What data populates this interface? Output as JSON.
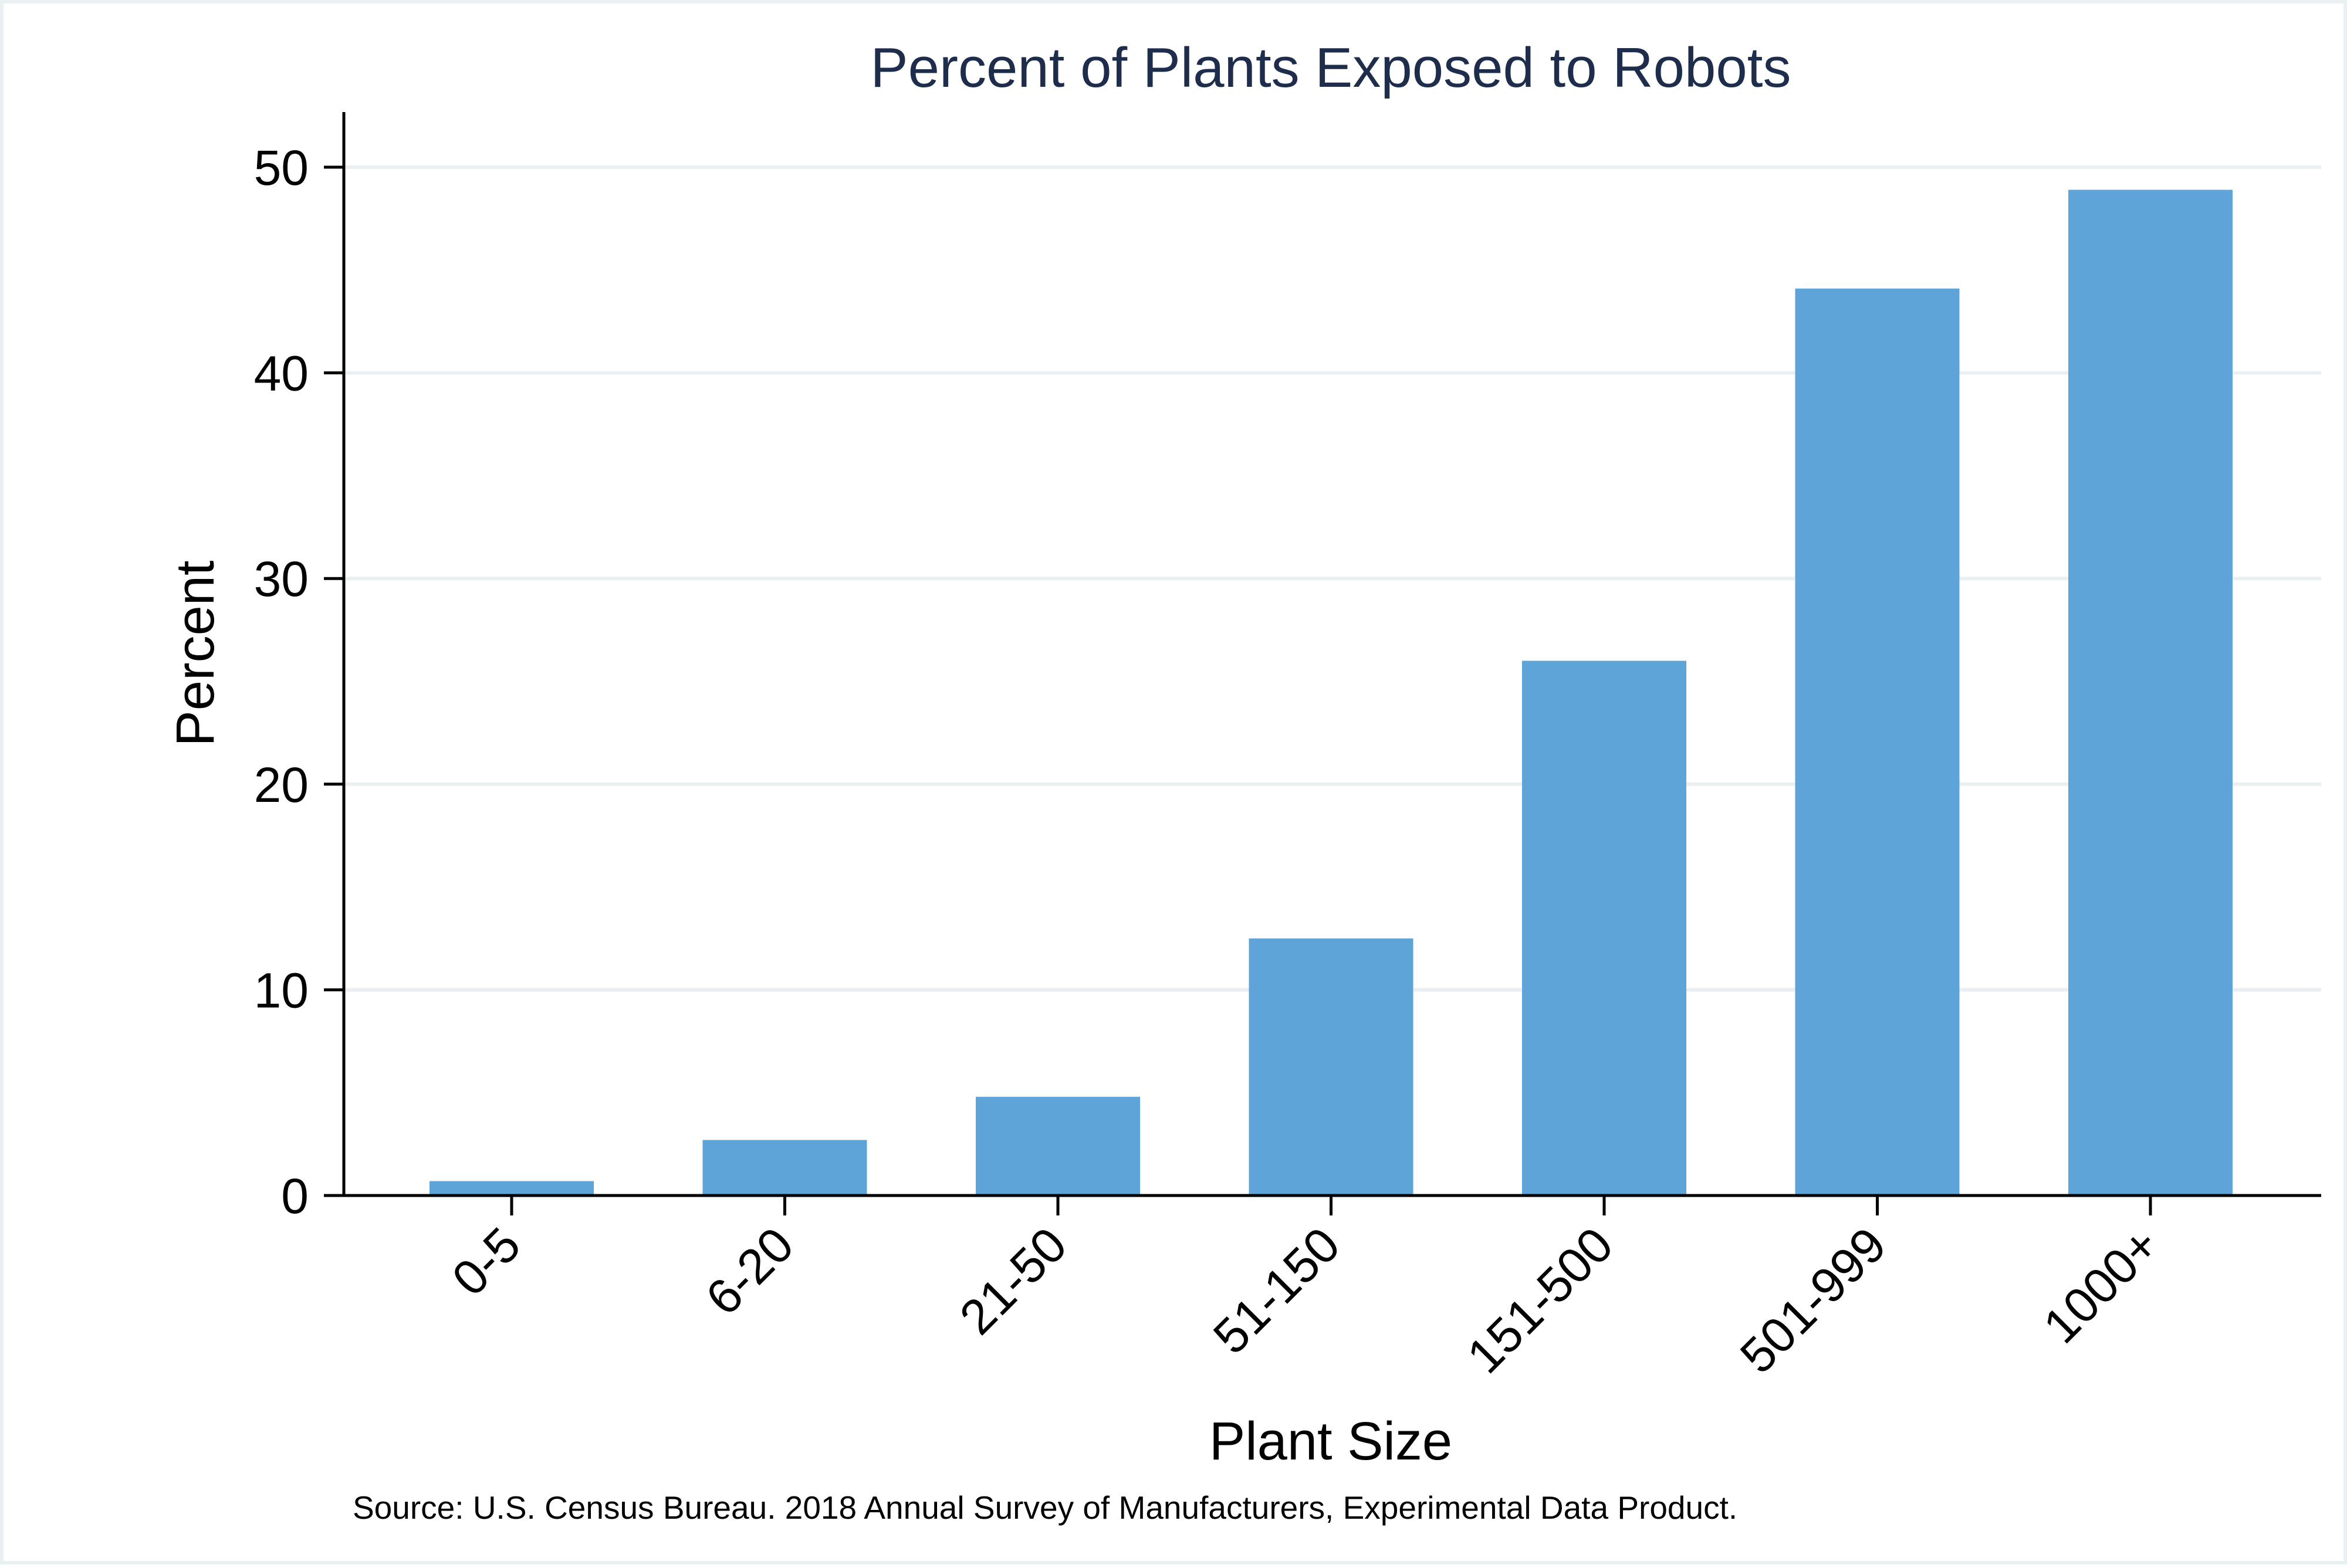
{
  "chart_data": {
    "type": "bar",
    "title": "Percent of Plants Exposed to Robots",
    "xlabel": "Plant Size",
    "ylabel": "Percent",
    "categories": [
      "0-5",
      "6-20",
      "21-50",
      "51-150",
      "151-500",
      "501-999",
      "1000+"
    ],
    "values": [
      0.7,
      2.7,
      4.8,
      12.5,
      26.0,
      44.1,
      48.9
    ],
    "ylim": [
      0,
      52
    ],
    "yticks": [
      0,
      10,
      20,
      30,
      40,
      50
    ],
    "grid": true,
    "bar_color": "#5fa4d8",
    "title_color": "#1f2d4d",
    "grid_color": "#e8f0f2",
    "note": "Source: U.S. Census Bureau. 2018 Annual Survey of Manufacturers, Experimental Data Product."
  }
}
